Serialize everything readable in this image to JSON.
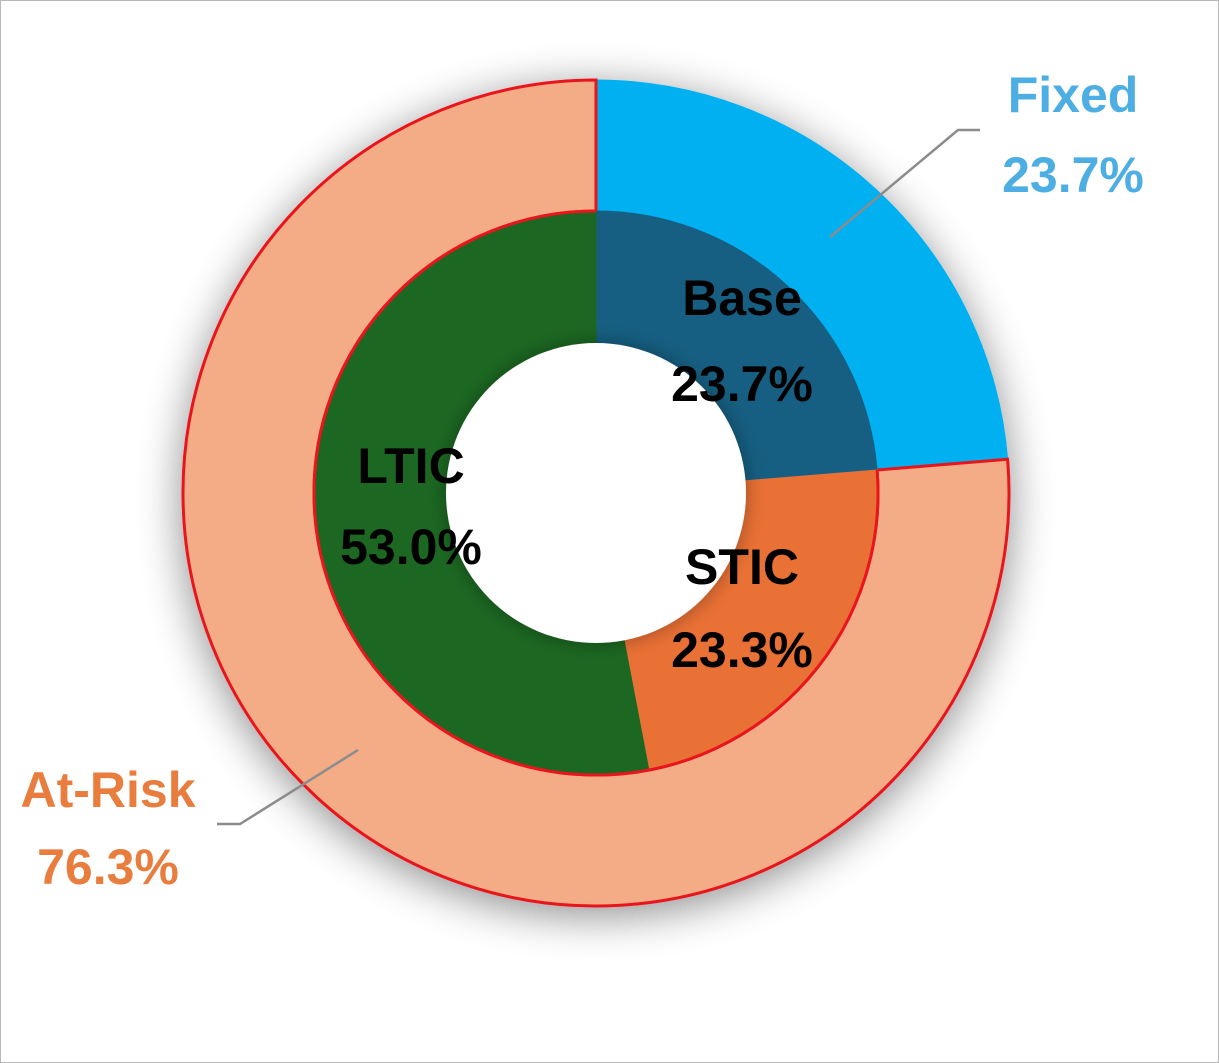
{
  "chart_data": {
    "type": "pie",
    "subtype": "nested-donut",
    "title": "",
    "outer_ring": {
      "categories": [
        "Fixed",
        "At-Risk"
      ],
      "values": [
        23.7,
        76.3
      ],
      "labels": [
        "23.7%",
        "76.3%"
      ],
      "colors": [
        "#00B0F0",
        "#F4AC87"
      ],
      "label_colors": [
        "#4DAEE3",
        "#E87D3E"
      ],
      "outline_color": "#E8141C"
    },
    "inner_ring": {
      "categories": [
        "Base",
        "STIC",
        "LTIC"
      ],
      "values": [
        23.7,
        23.3,
        53.0
      ],
      "labels": [
        "23.7%",
        "23.3%",
        "53.0%"
      ],
      "colors": [
        "#175E82",
        "#EA7135",
        "#1B6823"
      ],
      "label_color": "#000000"
    }
  }
}
